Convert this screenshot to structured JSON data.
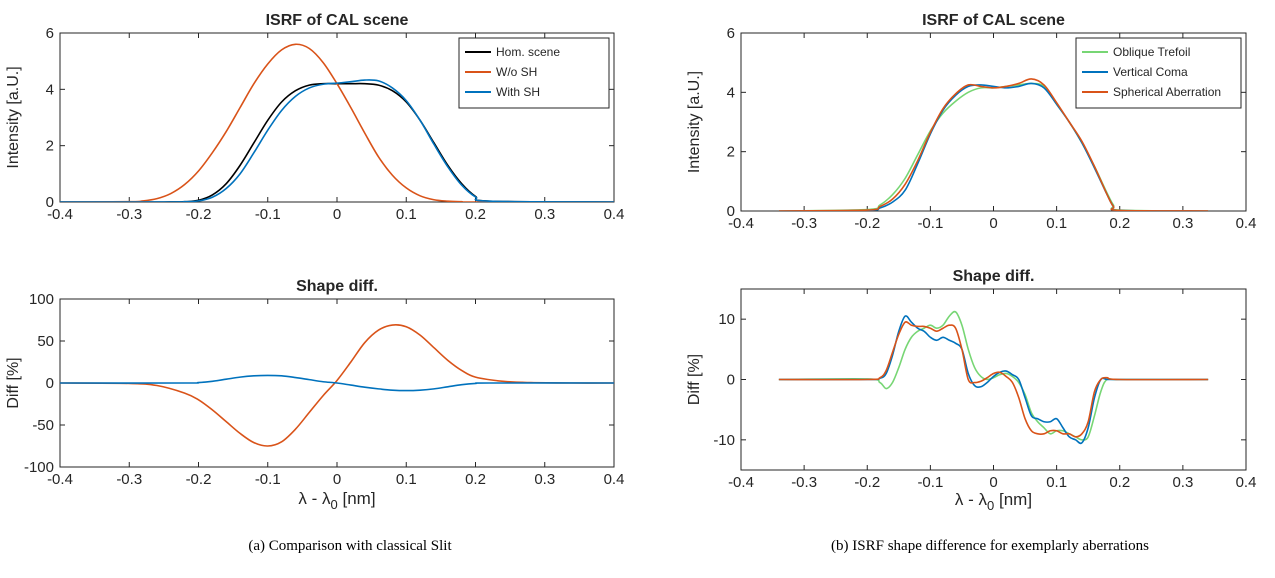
{
  "captions": {
    "left": "(a) Comparison with classical Slit",
    "right": "(b) ISRF shape difference for exemplarly aberrations"
  },
  "chart_data": [
    {
      "id": "a-top",
      "type": "line",
      "title": "ISRF of CAL scene",
      "xlabel": "",
      "ylabel": "Intensity [a.U.]",
      "xlim": [
        -0.4,
        0.4
      ],
      "ylim": [
        0,
        6
      ],
      "xticks": [
        -0.4,
        -0.3,
        -0.2,
        -0.1,
        0,
        0.1,
        0.2,
        0.3,
        0.4
      ],
      "xtick_labels": [
        "-0.4",
        "-0.3",
        "-0.2",
        "-0.1",
        "0",
        "0.1",
        "0.2",
        "0.3",
        "0.4"
      ],
      "yticks": [
        0,
        2,
        4,
        6
      ],
      "ytick_labels": [
        "0",
        "2",
        "4",
        "6"
      ],
      "grid": false,
      "legend": "top-right",
      "series": [
        {
          "name": "Hom. scene",
          "color": "#000000",
          "x": [
            -0.4,
            -0.25,
            -0.22,
            -0.2,
            -0.18,
            -0.16,
            -0.14,
            -0.12,
            -0.1,
            -0.08,
            -0.06,
            -0.04,
            -0.02,
            0,
            0.02,
            0.04,
            0.06,
            0.08,
            0.1,
            0.12,
            0.14,
            0.16,
            0.18,
            0.2,
            0.22,
            0.4
          ],
          "y": [
            0,
            0,
            0.01,
            0.06,
            0.25,
            0.65,
            1.3,
            2.1,
            2.9,
            3.55,
            3.95,
            4.15,
            4.2,
            4.2,
            4.2,
            4.2,
            4.15,
            3.95,
            3.55,
            2.9,
            2.1,
            1.3,
            0.65,
            0.2,
            0.03,
            0
          ]
        },
        {
          "name": "W/o SH",
          "color": "#d95319",
          "x": [
            -0.4,
            -0.3,
            -0.28,
            -0.26,
            -0.24,
            -0.22,
            -0.2,
            -0.18,
            -0.16,
            -0.14,
            -0.12,
            -0.1,
            -0.08,
            -0.06,
            -0.04,
            -0.02,
            0,
            0.02,
            0.04,
            0.06,
            0.08,
            0.1,
            0.12,
            0.14,
            0.16,
            0.18,
            0.2,
            0.4
          ],
          "y": [
            0,
            0.01,
            0.04,
            0.12,
            0.3,
            0.62,
            1.1,
            1.75,
            2.5,
            3.35,
            4.2,
            4.9,
            5.4,
            5.6,
            5.45,
            4.95,
            4.2,
            3.35,
            2.45,
            1.6,
            0.95,
            0.5,
            0.22,
            0.08,
            0.03,
            0.01,
            0,
            0
          ]
        },
        {
          "name": "With SH",
          "color": "#0072bd",
          "x": [
            -0.4,
            -0.24,
            -0.22,
            -0.2,
            -0.18,
            -0.16,
            -0.14,
            -0.12,
            -0.1,
            -0.08,
            -0.06,
            -0.04,
            -0.02,
            0,
            0.02,
            0.04,
            0.06,
            0.08,
            0.1,
            0.12,
            0.14,
            0.16,
            0.18,
            0.2,
            0.22,
            0.4
          ],
          "y": [
            0,
            0,
            0.01,
            0.04,
            0.17,
            0.48,
            1.0,
            1.75,
            2.55,
            3.25,
            3.75,
            4.05,
            4.18,
            4.22,
            4.27,
            4.33,
            4.3,
            4.05,
            3.6,
            2.9,
            2.05,
            1.25,
            0.6,
            0.18,
            0.03,
            0
          ]
        }
      ]
    },
    {
      "id": "a-bottom",
      "type": "line",
      "title": "Shape diff.",
      "xlabel": "λ - λ0 [nm]",
      "ylabel": "Diff [%]",
      "xlim": [
        -0.4,
        0.4
      ],
      "ylim": [
        -100,
        100
      ],
      "xticks": [
        -0.4,
        -0.3,
        -0.2,
        -0.1,
        0,
        0.1,
        0.2,
        0.3,
        0.4
      ],
      "xtick_labels": [
        "-0.4",
        "-0.3",
        "-0.2",
        "-0.1",
        "0",
        "0.1",
        "0.2",
        "0.3",
        "0.4"
      ],
      "yticks": [
        -100,
        -50,
        0,
        50,
        100
      ],
      "ytick_labels": [
        "-100",
        "-50",
        "0",
        "50",
        "100"
      ],
      "grid": false,
      "series": [
        {
          "name": "W/o SH",
          "color": "#d95319",
          "x": [
            -0.4,
            -0.3,
            -0.26,
            -0.22,
            -0.2,
            -0.18,
            -0.16,
            -0.14,
            -0.12,
            -0.1,
            -0.08,
            -0.06,
            -0.04,
            -0.02,
            0,
            0.02,
            0.04,
            0.06,
            0.08,
            0.1,
            0.12,
            0.14,
            0.16,
            0.18,
            0.2,
            0.24,
            0.28,
            0.34,
            0.4
          ],
          "y": [
            0,
            -0.5,
            -3,
            -12,
            -20,
            -32,
            -46,
            -60,
            -71,
            -75,
            -70,
            -55,
            -35,
            -15,
            3,
            25,
            48,
            63,
            69,
            67,
            57,
            42,
            27,
            15,
            7,
            2,
            0.5,
            0,
            0
          ]
        },
        {
          "name": "With SH",
          "color": "#0072bd",
          "x": [
            -0.4,
            -0.22,
            -0.2,
            -0.18,
            -0.16,
            -0.14,
            -0.12,
            -0.1,
            -0.08,
            -0.06,
            -0.04,
            -0.02,
            0,
            0.02,
            0.04,
            0.06,
            0.08,
            0.1,
            0.12,
            0.14,
            0.16,
            0.18,
            0.2,
            0.22,
            0.4
          ],
          "y": [
            0,
            0,
            0.5,
            2,
            4.5,
            7,
            8.5,
            9,
            8.5,
            6.5,
            4,
            1.5,
            0,
            -2.5,
            -5,
            -7,
            -8.5,
            -9,
            -8.5,
            -7,
            -4.5,
            -2,
            -0.5,
            0,
            0
          ]
        }
      ]
    },
    {
      "id": "b-top",
      "type": "line",
      "title": "ISRF of CAL scene",
      "xlabel": "",
      "ylabel": "Intensity [a.U.]",
      "xlim": [
        -0.4,
        0.4
      ],
      "ylim": [
        0,
        6
      ],
      "xticks": [
        -0.4,
        -0.3,
        -0.2,
        -0.1,
        0,
        0.1,
        0.2,
        0.3,
        0.4
      ],
      "xtick_labels": [
        "-0.4",
        "-0.3",
        "-0.2",
        "-0.1",
        "0",
        "0.1",
        "0.2",
        "0.3",
        "0.4"
      ],
      "yticks": [
        0,
        2,
        4,
        6
      ],
      "ytick_labels": [
        "0",
        "2",
        "4",
        "6"
      ],
      "grid": false,
      "legend": "top-right",
      "series": [
        {
          "name": "Oblique Trefoil",
          "color": "#77d674",
          "x": [
            -0.34,
            -0.2,
            -0.18,
            -0.16,
            -0.14,
            -0.12,
            -0.1,
            -0.08,
            -0.06,
            -0.04,
            -0.02,
            0,
            0.02,
            0.04,
            0.06,
            0.08,
            0.1,
            0.12,
            0.14,
            0.16,
            0.18,
            0.19,
            0.2,
            0.34
          ],
          "y": [
            0,
            0.05,
            0.2,
            0.55,
            1.1,
            1.9,
            2.7,
            3.3,
            3.7,
            4.0,
            4.15,
            4.15,
            4.2,
            4.25,
            4.3,
            4.2,
            3.6,
            3.0,
            2.3,
            1.5,
            0.6,
            0.2,
            0.03,
            0
          ]
        },
        {
          "name": "Vertical Coma",
          "color": "#0072bd",
          "x": [
            -0.34,
            -0.2,
            -0.18,
            -0.16,
            -0.14,
            -0.12,
            -0.1,
            -0.08,
            -0.06,
            -0.04,
            -0.02,
            0,
            0.02,
            0.04,
            0.06,
            0.08,
            0.1,
            0.12,
            0.14,
            0.16,
            0.18,
            0.19,
            0.2,
            0.34
          ],
          "y": [
            0,
            0.02,
            0.1,
            0.3,
            0.7,
            1.6,
            2.6,
            3.4,
            3.9,
            4.2,
            4.25,
            4.2,
            4.15,
            4.2,
            4.3,
            4.15,
            3.6,
            3.0,
            2.3,
            1.45,
            0.55,
            0.15,
            0.02,
            0
          ]
        },
        {
          "name": "Spherical Aberration",
          "color": "#d95319",
          "x": [
            -0.34,
            -0.2,
            -0.18,
            -0.16,
            -0.14,
            -0.12,
            -0.1,
            -0.08,
            -0.06,
            -0.04,
            -0.02,
            0,
            0.02,
            0.04,
            0.06,
            0.08,
            0.1,
            0.12,
            0.14,
            0.16,
            0.18,
            0.19,
            0.2,
            0.34
          ],
          "y": [
            0,
            0.03,
            0.15,
            0.4,
            0.9,
            1.7,
            2.65,
            3.45,
            3.95,
            4.25,
            4.2,
            4.15,
            4.2,
            4.3,
            4.45,
            4.25,
            3.65,
            3.0,
            2.35,
            1.5,
            0.55,
            0.15,
            0.02,
            0
          ]
        }
      ]
    },
    {
      "id": "b-bottom",
      "type": "line",
      "title": "Shape diff.",
      "xlabel": "λ - λ0 [nm]",
      "ylabel": "Diff [%]",
      "xlim": [
        -0.4,
        0.4
      ],
      "ylim": [
        -15,
        15
      ],
      "xticks": [
        -0.4,
        -0.3,
        -0.2,
        -0.1,
        0,
        0.1,
        0.2,
        0.3,
        0.4
      ],
      "xtick_labels": [
        "-0.4",
        "-0.3",
        "-0.2",
        "-0.1",
        "0",
        "0.1",
        "0.2",
        "0.3",
        "0.4"
      ],
      "yticks": [
        -10,
        0,
        10
      ],
      "ytick_labels": [
        "-10",
        "0",
        "10"
      ],
      "grid": false,
      "series": [
        {
          "name": "Oblique Trefoil",
          "color": "#77d674",
          "x": [
            -0.34,
            -0.2,
            -0.18,
            -0.17,
            -0.16,
            -0.15,
            -0.14,
            -0.13,
            -0.12,
            -0.11,
            -0.1,
            -0.09,
            -0.08,
            -0.07,
            -0.06,
            -0.05,
            -0.04,
            -0.03,
            -0.02,
            -0.01,
            0,
            0.01,
            0.02,
            0.03,
            0.04,
            0.05,
            0.06,
            0.07,
            0.08,
            0.09,
            0.1,
            0.11,
            0.12,
            0.13,
            0.14,
            0.15,
            0.16,
            0.17,
            0.18,
            0.2,
            0.34
          ],
          "y": [
            0,
            0.1,
            -0.5,
            -1.5,
            -0.5,
            2,
            5,
            7,
            8,
            8.5,
            9,
            8.5,
            9,
            10.5,
            11.2,
            9,
            5,
            2,
            0.5,
            0,
            0.3,
            0.8,
            1,
            0.5,
            -0.5,
            -2.5,
            -5.5,
            -7,
            -8,
            -9,
            -8.5,
            -8.5,
            -9,
            -9.5,
            -10,
            -9.5,
            -6,
            -2,
            0,
            0,
            0
          ]
        },
        {
          "name": "Vertical Coma",
          "color": "#0072bd",
          "x": [
            -0.34,
            -0.2,
            -0.18,
            -0.17,
            -0.16,
            -0.15,
            -0.14,
            -0.13,
            -0.12,
            -0.11,
            -0.1,
            -0.09,
            -0.08,
            -0.07,
            -0.06,
            -0.05,
            -0.04,
            -0.03,
            -0.02,
            -0.01,
            0,
            0.01,
            0.02,
            0.03,
            0.04,
            0.05,
            0.06,
            0.07,
            0.08,
            0.09,
            0.1,
            0.11,
            0.12,
            0.13,
            0.14,
            0.15,
            0.16,
            0.17,
            0.18,
            0.2,
            0.34
          ],
          "y": [
            0,
            0,
            0.2,
            1,
            4,
            8,
            10.5,
            9.5,
            8.5,
            8,
            7,
            6.5,
            7,
            6.5,
            6,
            5,
            1,
            -1,
            -1.2,
            -0.5,
            0.5,
            1.2,
            1.4,
            0.8,
            0,
            -3,
            -6,
            -6.5,
            -7,
            -7,
            -6.5,
            -8,
            -9.5,
            -10,
            -10.5,
            -8,
            -3,
            0,
            0,
            0,
            0
          ]
        },
        {
          "name": "Spherical Aberration",
          "color": "#d95319",
          "x": [
            -0.34,
            -0.2,
            -0.18,
            -0.17,
            -0.16,
            -0.15,
            -0.14,
            -0.13,
            -0.12,
            -0.11,
            -0.1,
            -0.09,
            -0.08,
            -0.07,
            -0.06,
            -0.05,
            -0.04,
            -0.03,
            -0.02,
            -0.01,
            0,
            0.01,
            0.02,
            0.03,
            0.04,
            0.05,
            0.06,
            0.07,
            0.08,
            0.09,
            0.1,
            0.11,
            0.12,
            0.13,
            0.14,
            0.15,
            0.16,
            0.17,
            0.18,
            0.2,
            0.34
          ],
          "y": [
            0,
            0,
            0.3,
            1.5,
            4.5,
            7.5,
            9.5,
            9,
            8.8,
            8.8,
            8.5,
            8,
            8.5,
            9,
            8.5,
            5,
            0,
            -0.5,
            -0.3,
            0.3,
            1,
            1.2,
            0.5,
            -0.5,
            -3,
            -6.5,
            -8.5,
            -9,
            -9,
            -8.5,
            -8.5,
            -9,
            -9,
            -9.5,
            -9,
            -7,
            -2,
            0,
            0.3,
            0,
            0
          ]
        }
      ]
    }
  ]
}
